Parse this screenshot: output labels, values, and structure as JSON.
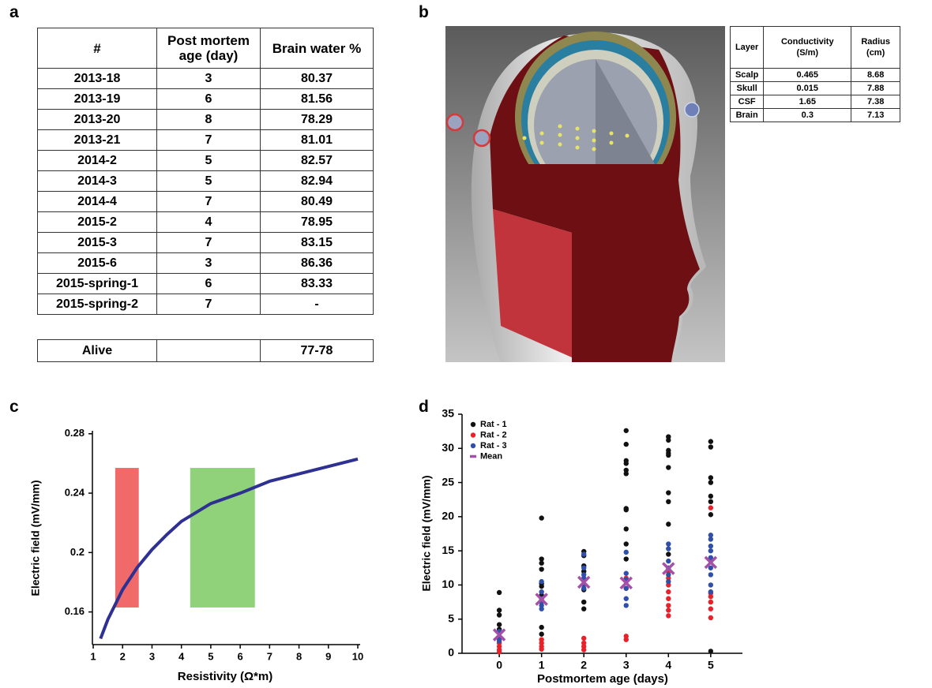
{
  "panels": [
    "a",
    "b",
    "c",
    "d"
  ],
  "table_a": {
    "header": [
      "#",
      "Post mortem age (day)",
      "Brain water %"
    ],
    "rows": [
      [
        "2013-18",
        "3",
        "80.37"
      ],
      [
        "2013-19",
        "6",
        "81.56"
      ],
      [
        "2013-20",
        "8",
        "78.29"
      ],
      [
        "2013-21",
        "7",
        "81.01"
      ],
      [
        "2014-2",
        "5",
        "82.57"
      ],
      [
        "2014-3",
        "5",
        "82.94"
      ],
      [
        "2014-4",
        "7",
        "80.49"
      ],
      [
        "2015-2",
        "4",
        "78.95"
      ],
      [
        "2015-3",
        "7",
        "83.15"
      ],
      [
        "2015-6",
        "3",
        "86.36"
      ],
      [
        "2015-spring-1",
        "6",
        "83.33"
      ],
      [
        "2015-spring-2",
        "7",
        "-"
      ]
    ],
    "alive_row": {
      "label": "Alive",
      "brain_water": "77-78"
    }
  },
  "table_b": {
    "header": [
      "Layer",
      "Conductivity (S/m)",
      "Radius (cm)"
    ],
    "rows": [
      [
        "Scalp",
        "0.465",
        "8.68"
      ],
      [
        "Skull",
        "0.015",
        "7.88"
      ],
      [
        "CSF",
        "1.65",
        "7.38"
      ],
      [
        "Brain",
        "0.3",
        "7.13"
      ]
    ]
  },
  "chart_data": [
    {
      "type": "line",
      "xlabel": "Resistivity (Ω*m)",
      "ylabel": "Electric field (mV/mm)",
      "xlim": [
        1,
        10
      ],
      "ylim": [
        0.138,
        0.282
      ],
      "xticks": [
        1,
        2,
        3,
        4,
        5,
        6,
        7,
        8,
        9,
        10
      ],
      "yticks": [
        0.16,
        0.2,
        0.24,
        0.28
      ],
      "regions": [
        {
          "x": [
            1.75,
            2.55
          ],
          "y": [
            0.163,
            0.257
          ],
          "color": "#f06a6a"
        },
        {
          "x": [
            4.3,
            6.5
          ],
          "y": [
            0.163,
            0.257
          ],
          "color": "#8fd27a"
        }
      ],
      "series": [
        {
          "color": "#2e3192",
          "x": [
            1.25,
            1.5,
            2,
            2.5,
            3,
            3.5,
            4,
            5,
            6,
            7,
            8,
            9,
            10
          ],
          "values": [
            0.142,
            0.155,
            0.175,
            0.19,
            0.202,
            0.212,
            0.221,
            0.233,
            0.24,
            0.248,
            0.253,
            0.258,
            0.263
          ]
        }
      ]
    },
    {
      "type": "scatter",
      "xlabel": "Postmortem age (days)",
      "ylabel": "Electric field (mV/mm)",
      "xlim": [
        -0.88,
        5.75
      ],
      "ylim": [
        0,
        35
      ],
      "xticks": [
        0,
        1,
        2,
        3,
        4,
        5
      ],
      "yticks": [
        0,
        5,
        10,
        15,
        20,
        25,
        30,
        35
      ],
      "legend": "upper left",
      "series": [
        {
          "name": "Rat - 1",
          "color": "#111111",
          "marker": "o",
          "x": [
            0,
            0,
            0,
            0,
            0,
            1,
            1,
            1,
            1,
            1,
            1,
            1,
            1,
            1,
            2,
            2,
            2,
            2,
            2,
            2,
            2,
            3,
            3,
            3,
            3,
            3,
            3,
            3,
            3,
            3,
            3,
            3,
            4,
            4,
            4,
            4,
            4,
            4,
            4,
            4,
            4,
            4,
            5,
            5,
            5,
            5,
            5,
            5,
            5,
            5
          ],
          "values": [
            8.9,
            6.3,
            5.6,
            4.2,
            3.5,
            19.8,
            13.8,
            13.2,
            12.3,
            10.2,
            9.8,
            8.5,
            3.8,
            2.8,
            14.9,
            14.3,
            12.8,
            12.0,
            9.3,
            7.5,
            6.5,
            32.6,
            30.6,
            28.2,
            27.8,
            26.8,
            26.3,
            21.2,
            21.0,
            18.2,
            16.0,
            13.8,
            31.7,
            31.2,
            29.7,
            29.3,
            29.0,
            27.2,
            23.5,
            22.2,
            18.9,
            14.5,
            31.0,
            30.2,
            25.7,
            25.0,
            23.0,
            22.2,
            20.3,
            0.3
          ]
        },
        {
          "name": "Rat - 2",
          "color": "#e8212b",
          "marker": "o",
          "x": [
            0,
            0,
            0,
            0,
            0,
            0,
            1,
            1,
            1,
            1,
            2,
            2,
            2,
            2,
            3,
            3,
            3,
            3,
            4,
            4,
            4,
            4,
            4,
            4,
            4,
            4,
            5,
            5,
            5,
            5,
            5,
            5,
            5
          ],
          "values": [
            3.0,
            2.0,
            1.5,
            1.0,
            0.5,
            0.2,
            2.0,
            1.5,
            1.0,
            0.6,
            2.2,
            1.5,
            1.0,
            0.5,
            11.0,
            9.5,
            2.5,
            2.0,
            12.0,
            11.0,
            10.0,
            9.0,
            8.0,
            7.0,
            6.3,
            5.5,
            21.3,
            13.5,
            8.8,
            8.3,
            7.5,
            6.5,
            5.2
          ]
        },
        {
          "name": "Rat - 3",
          "color": "#2f4fa8",
          "marker": "o",
          "x": [
            0,
            0,
            0,
            1,
            1,
            1,
            1,
            1,
            1,
            2,
            2,
            2,
            2,
            2,
            2,
            3,
            3,
            3,
            3,
            3,
            3,
            4,
            4,
            4,
            4,
            4,
            4,
            5,
            5,
            5,
            5,
            5,
            5,
            5,
            5,
            5
          ],
          "values": [
            3.2,
            2.2,
            1.8,
            10.5,
            9.0,
            8.0,
            7.5,
            7.0,
            6.5,
            14.5,
            12.5,
            11.5,
            11.0,
            10.0,
            9.5,
            14.8,
            11.7,
            10.8,
            9.5,
            8.0,
            7.0,
            16.0,
            15.3,
            13.5,
            12.5,
            11.5,
            10.5,
            17.3,
            16.7,
            15.7,
            15.0,
            14.0,
            12.5,
            11.5,
            10.0,
            9.0
          ]
        },
        {
          "name": "Mean",
          "color": "#a550a8",
          "marker": "x",
          "x": [
            0,
            1,
            2,
            3,
            4,
            5
          ],
          "values": [
            2.7,
            7.9,
            10.4,
            10.3,
            12.4,
            13.3
          ]
        }
      ]
    }
  ]
}
